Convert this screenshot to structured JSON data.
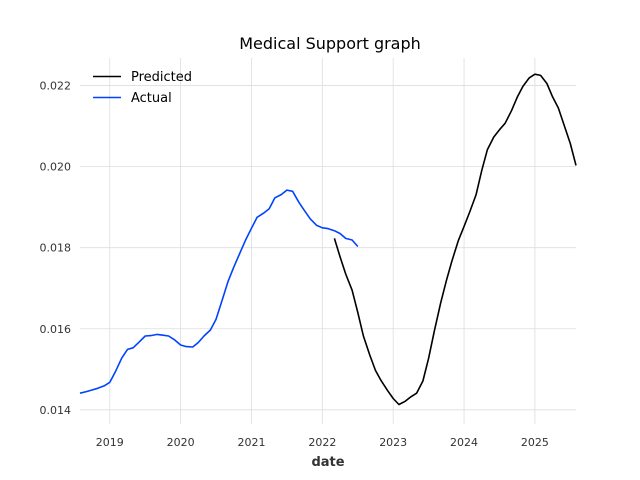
{
  "chart_data": {
    "type": "line",
    "title": "Medical Support graph",
    "xlabel": "date",
    "ylabel": "",
    "xlim": [
      2018.58,
      2025.58
    ],
    "ylim": [
      0.01365,
      0.02268
    ],
    "grid": true,
    "legend_position": "top-left",
    "x_ticks": [
      2019,
      2020,
      2021,
      2022,
      2023,
      2024,
      2025
    ],
    "x_tick_labels": [
      "2019",
      "2020",
      "2021",
      "2022",
      "2023",
      "2024",
      "2025"
    ],
    "y_ticks": [
      0.014,
      0.016,
      0.018,
      0.02,
      0.022
    ],
    "y_tick_labels": [
      "0.014",
      "0.016",
      "0.018",
      "0.020",
      "0.022"
    ],
    "series": [
      {
        "name": "Predicted",
        "color": "#000000",
        "x": [
          2022.17,
          2022.25,
          2022.33,
          2022.42,
          2022.5,
          2022.58,
          2022.67,
          2022.75,
          2022.83,
          2022.92,
          2023.0,
          2023.08,
          2023.17,
          2023.25,
          2023.33,
          2023.42,
          2023.5,
          2023.58,
          2023.67,
          2023.75,
          2023.83,
          2023.92,
          2024.0,
          2024.08,
          2024.17,
          2024.25,
          2024.33,
          2024.42,
          2024.5,
          2024.58,
          2024.67,
          2024.75,
          2024.83,
          2024.92,
          2025.0,
          2025.08,
          2025.17,
          2025.25,
          2025.33,
          2025.42,
          2025.5,
          2025.58
        ],
        "y": [
          0.01823,
          0.01778,
          0.01735,
          0.01695,
          0.0164,
          0.01582,
          0.01535,
          0.01497,
          0.01472,
          0.01448,
          0.01428,
          0.01413,
          0.01421,
          0.01432,
          0.01441,
          0.01471,
          0.01527,
          0.01594,
          0.01664,
          0.01718,
          0.01768,
          0.01818,
          0.01852,
          0.01888,
          0.01931,
          0.01991,
          0.02042,
          0.02073,
          0.02091,
          0.02107,
          0.02138,
          0.02171,
          0.02198,
          0.02219,
          0.02228,
          0.02225,
          0.02205,
          0.02172,
          0.02145,
          0.02098,
          0.02057,
          0.02003
        ]
      },
      {
        "name": "Actual",
        "color": "#0043ff",
        "x": [
          2018.58,
          2018.67,
          2018.75,
          2018.83,
          2018.92,
          2019.0,
          2019.08,
          2019.17,
          2019.25,
          2019.33,
          2019.42,
          2019.5,
          2019.58,
          2019.67,
          2019.75,
          2019.83,
          2019.92,
          2020.0,
          2020.08,
          2020.17,
          2020.25,
          2020.33,
          2020.42,
          2020.5,
          2020.58,
          2020.67,
          2020.75,
          2020.83,
          2020.92,
          2021.0,
          2021.08,
          2021.17,
          2021.25,
          2021.33,
          2021.42,
          2021.5,
          2021.58,
          2021.67,
          2021.75,
          2021.83,
          2021.92,
          2022.0,
          2022.08,
          2022.17,
          2022.25,
          2022.33,
          2022.42,
          2022.5
        ],
        "y": [
          0.01441,
          0.01445,
          0.01449,
          0.01453,
          0.01459,
          0.01468,
          0.01494,
          0.01528,
          0.01549,
          0.01553,
          0.01568,
          0.01582,
          0.01583,
          0.01586,
          0.01584,
          0.01582,
          0.01572,
          0.0156,
          0.01556,
          0.01555,
          0.01566,
          0.01582,
          0.01597,
          0.01623,
          0.01667,
          0.01717,
          0.01752,
          0.01784,
          0.0182,
          0.01848,
          0.01875,
          0.01885,
          0.01896,
          0.01923,
          0.01931,
          0.01942,
          0.01939,
          0.01912,
          0.01891,
          0.01871,
          0.01855,
          0.01849,
          0.01847,
          0.01842,
          0.01835,
          0.01823,
          0.01819,
          0.01803
        ]
      }
    ]
  }
}
